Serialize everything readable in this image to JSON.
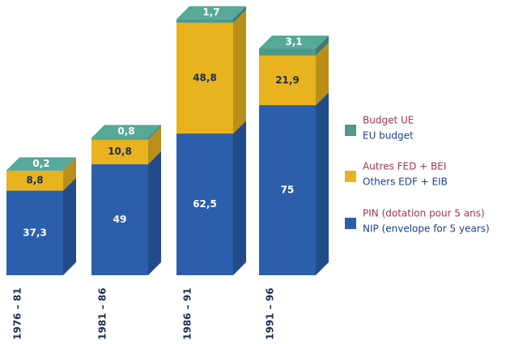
{
  "chart_data": {
    "type": "bar3d_stacked",
    "categories": [
      "1976 – 81",
      "1981 – 86",
      "1986 – 91",
      "1991 – 96"
    ],
    "series": [
      {
        "name": [
          "PIN (dotation pour 5 ans)",
          "NIP (envelope for 5 years)"
        ],
        "color": "#2b5fab",
        "values": [
          37.3,
          49,
          62.5,
          75
        ],
        "value_labels": [
          "37,3",
          "49",
          "62,5",
          "75"
        ]
      },
      {
        "name": [
          "Autres FED + BEI",
          "Others EDF + EIB"
        ],
        "color": "#e8b31f",
        "values": [
          8.8,
          10.8,
          48.8,
          21.9
        ],
        "value_labels": [
          "8,8",
          "10,8",
          "48,8",
          "21,9"
        ]
      },
      {
        "name": [
          "Budget UE",
          "EU budget"
        ],
        "color": "#4e9a8a",
        "values": [
          0.2,
          0.8,
          1.7,
          3.1
        ],
        "value_labels": [
          "0,2",
          "0,8",
          "1,7",
          "3,1"
        ]
      }
    ]
  }
}
